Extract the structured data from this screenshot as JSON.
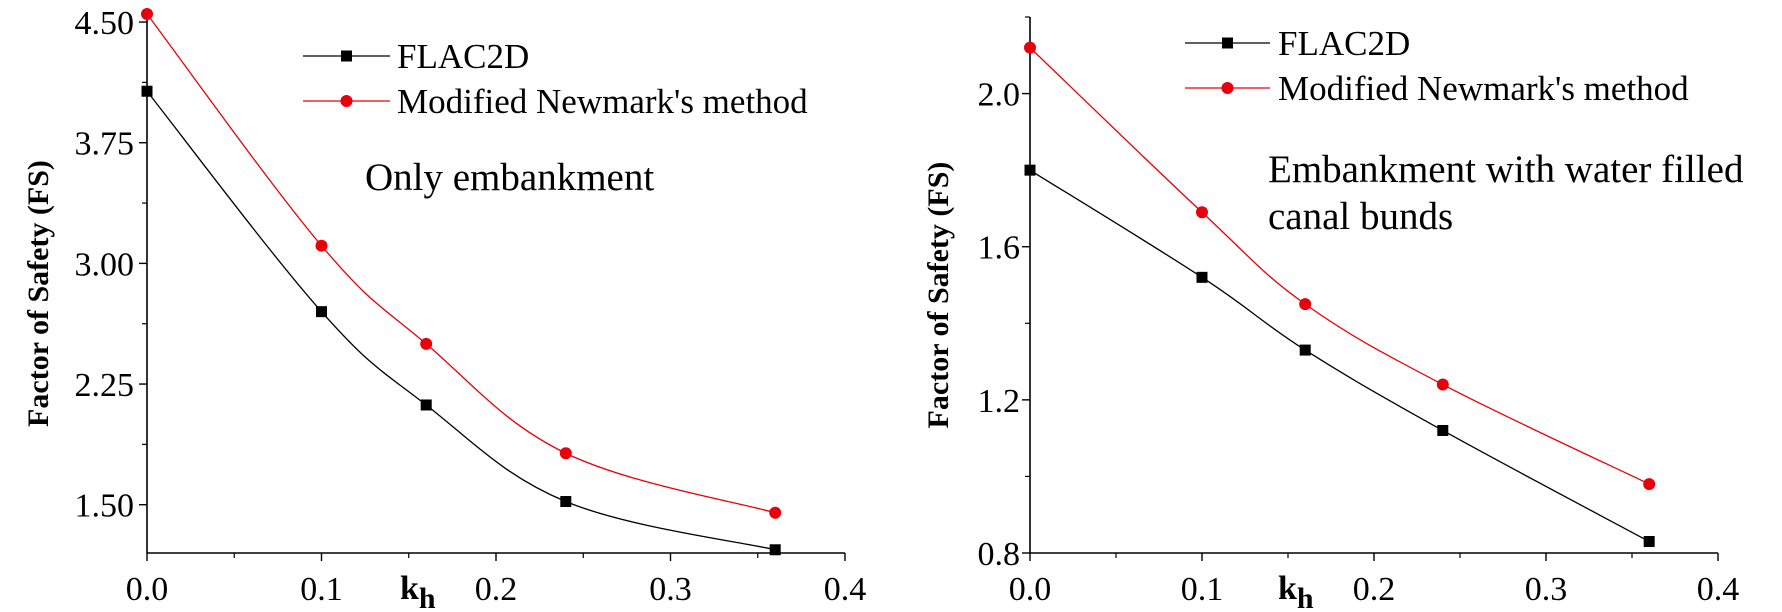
{
  "chart_data": [
    {
      "type": "line",
      "ylabel": "Factor of Safety (FS)",
      "xlabel_main": "k",
      "xlabel_sub": "h",
      "xlim": [
        0.0,
        0.4
      ],
      "ylim": [
        1.2,
        4.55
      ],
      "x_ticks": [
        "0.0",
        "0.1",
        "0.2",
        "0.3",
        "0.4"
      ],
      "y_ticks": [
        "1.50",
        "2.25",
        "3.00",
        "3.75",
        "4.50"
      ],
      "series": [
        {
          "name": "FLAC2D",
          "marker": "square",
          "color": "#000000",
          "x": [
            0.0,
            0.1,
            0.16,
            0.24,
            0.36
          ],
          "y": [
            4.07,
            2.7,
            2.12,
            1.52,
            1.22
          ]
        },
        {
          "name": "Modified Newmark's method",
          "marker": "circle",
          "color": "#e8000b",
          "x": [
            0.0,
            0.1,
            0.16,
            0.24,
            0.36
          ],
          "y": [
            4.55,
            3.11,
            2.5,
            1.82,
            1.45
          ]
        }
      ],
      "annotation": [
        "Only embankment"
      ],
      "legend_position": "top-center",
      "grid": false
    },
    {
      "type": "line",
      "ylabel": "Factor of Safety (FS)",
      "xlabel_main": "k",
      "xlabel_sub": "h",
      "xlim": [
        0.0,
        0.4
      ],
      "ylim": [
        0.8,
        2.2
      ],
      "x_ticks": [
        "0.0",
        "0.1",
        "0.2",
        "0.3",
        "0.4"
      ],
      "y_ticks": [
        "0.8",
        "1.2",
        "1.6",
        "2.0"
      ],
      "series": [
        {
          "name": "FLAC2D",
          "marker": "square",
          "color": "#000000",
          "x": [
            0.0,
            0.1,
            0.16,
            0.24,
            0.36
          ],
          "y": [
            1.8,
            1.52,
            1.33,
            1.12,
            0.83
          ]
        },
        {
          "name": "Modified Newmark's method",
          "marker": "circle",
          "color": "#e8000b",
          "x": [
            0.0,
            0.1,
            0.16,
            0.24,
            0.36
          ],
          "y": [
            2.12,
            1.69,
            1.45,
            1.24,
            0.98
          ]
        }
      ],
      "annotation": [
        "Embankment with water filled",
        "canal bunds"
      ],
      "legend_position": "top-center",
      "grid": false
    }
  ]
}
